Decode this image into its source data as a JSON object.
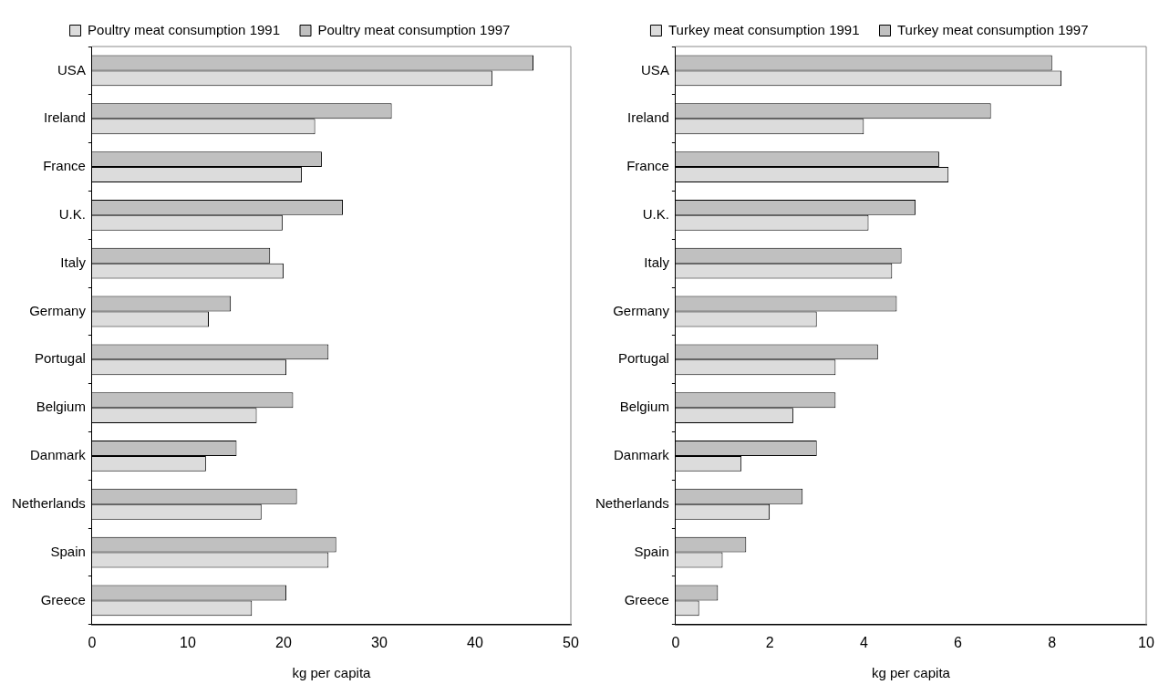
{
  "chart_data": [
    {
      "type": "bar",
      "orientation": "horizontal",
      "categories": [
        "USA",
        "Ireland",
        "France",
        "U.K.",
        "Italy",
        "Germany",
        "Portugal",
        "Belgium",
        "Danmark",
        "Netherlands",
        "Spain",
        "Greece"
      ],
      "series": [
        {
          "name": "Poultry meat consumption 1997",
          "color": "#c0c0c0",
          "values": [
            46.1,
            31.3,
            24.0,
            26.2,
            18.6,
            14.5,
            24.7,
            21.0,
            15.1,
            21.4,
            25.5,
            20.3
          ]
        },
        {
          "name": "Poultry meat consumption 1991",
          "color": "#dcdcdc",
          "values": [
            41.8,
            23.3,
            21.9,
            19.9,
            20.0,
            12.2,
            20.3,
            17.2,
            11.9,
            17.7,
            24.7,
            16.7
          ]
        }
      ],
      "xlim": [
        0,
        50
      ],
      "xticks": [
        0,
        10,
        20,
        30,
        40,
        50
      ],
      "xlabel": "kg per capita",
      "legend": "top",
      "grid": false
    },
    {
      "type": "bar",
      "orientation": "horizontal",
      "categories": [
        "USA",
        "Ireland",
        "France",
        "U.K.",
        "Italy",
        "Germany",
        "Portugal",
        "Belgium",
        "Danmark",
        "Netherlands",
        "Spain",
        "Greece"
      ],
      "series": [
        {
          "name": "Turkey meat consumption 1997",
          "color": "#c0c0c0",
          "values": [
            8.0,
            6.7,
            5.6,
            5.1,
            4.8,
            4.7,
            4.3,
            3.4,
            3.0,
            2.7,
            1.5,
            0.9
          ]
        },
        {
          "name": "Turkey meat consumption 1991",
          "color": "#dcdcdc",
          "values": [
            8.2,
            4.0,
            5.8,
            4.1,
            4.6,
            3.0,
            3.4,
            2.5,
            1.4,
            2.0,
            1.0,
            0.5
          ]
        }
      ],
      "xlim": [
        0,
        10
      ],
      "xticks": [
        0,
        2,
        4,
        6,
        8,
        10
      ],
      "xlabel": "kg per capita",
      "legend": "top",
      "grid": false
    }
  ]
}
